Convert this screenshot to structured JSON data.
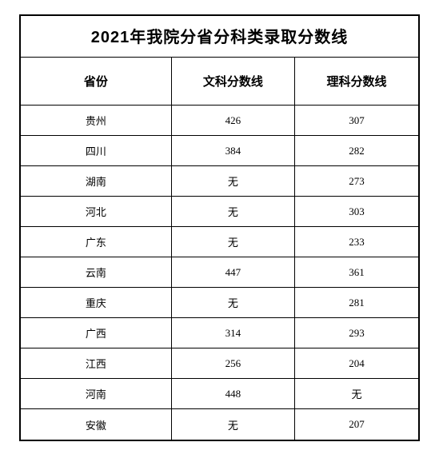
{
  "table": {
    "title": "2021年我院分省分科类录取分数线",
    "title_fontsize": 20,
    "header_fontsize": 15,
    "cell_fontsize": 13,
    "border_color": "#000000",
    "background_color": "#ffffff",
    "text_color": "#000000",
    "columns": [
      {
        "label": "省份",
        "width_pct": 38
      },
      {
        "label": "文科分数线",
        "width_pct": 31
      },
      {
        "label": "理科分数线",
        "width_pct": 31
      }
    ],
    "rows": [
      {
        "province": "贵州",
        "liberal": "426",
        "science": "307"
      },
      {
        "province": "四川",
        "liberal": "384",
        "science": "282"
      },
      {
        "province": "湖南",
        "liberal": "无",
        "science": "273"
      },
      {
        "province": "河北",
        "liberal": "无",
        "science": "303"
      },
      {
        "province": "广东",
        "liberal": "无",
        "science": "233"
      },
      {
        "province": "云南",
        "liberal": "447",
        "science": "361"
      },
      {
        "province": "重庆",
        "liberal": "无",
        "science": "281"
      },
      {
        "province": "广西",
        "liberal": "314",
        "science": "293"
      },
      {
        "province": "江西",
        "liberal": "256",
        "science": "204"
      },
      {
        "province": "河南",
        "liberal": "448",
        "science": "无"
      },
      {
        "province": "安徽",
        "liberal": "无",
        "science": "207"
      }
    ]
  }
}
